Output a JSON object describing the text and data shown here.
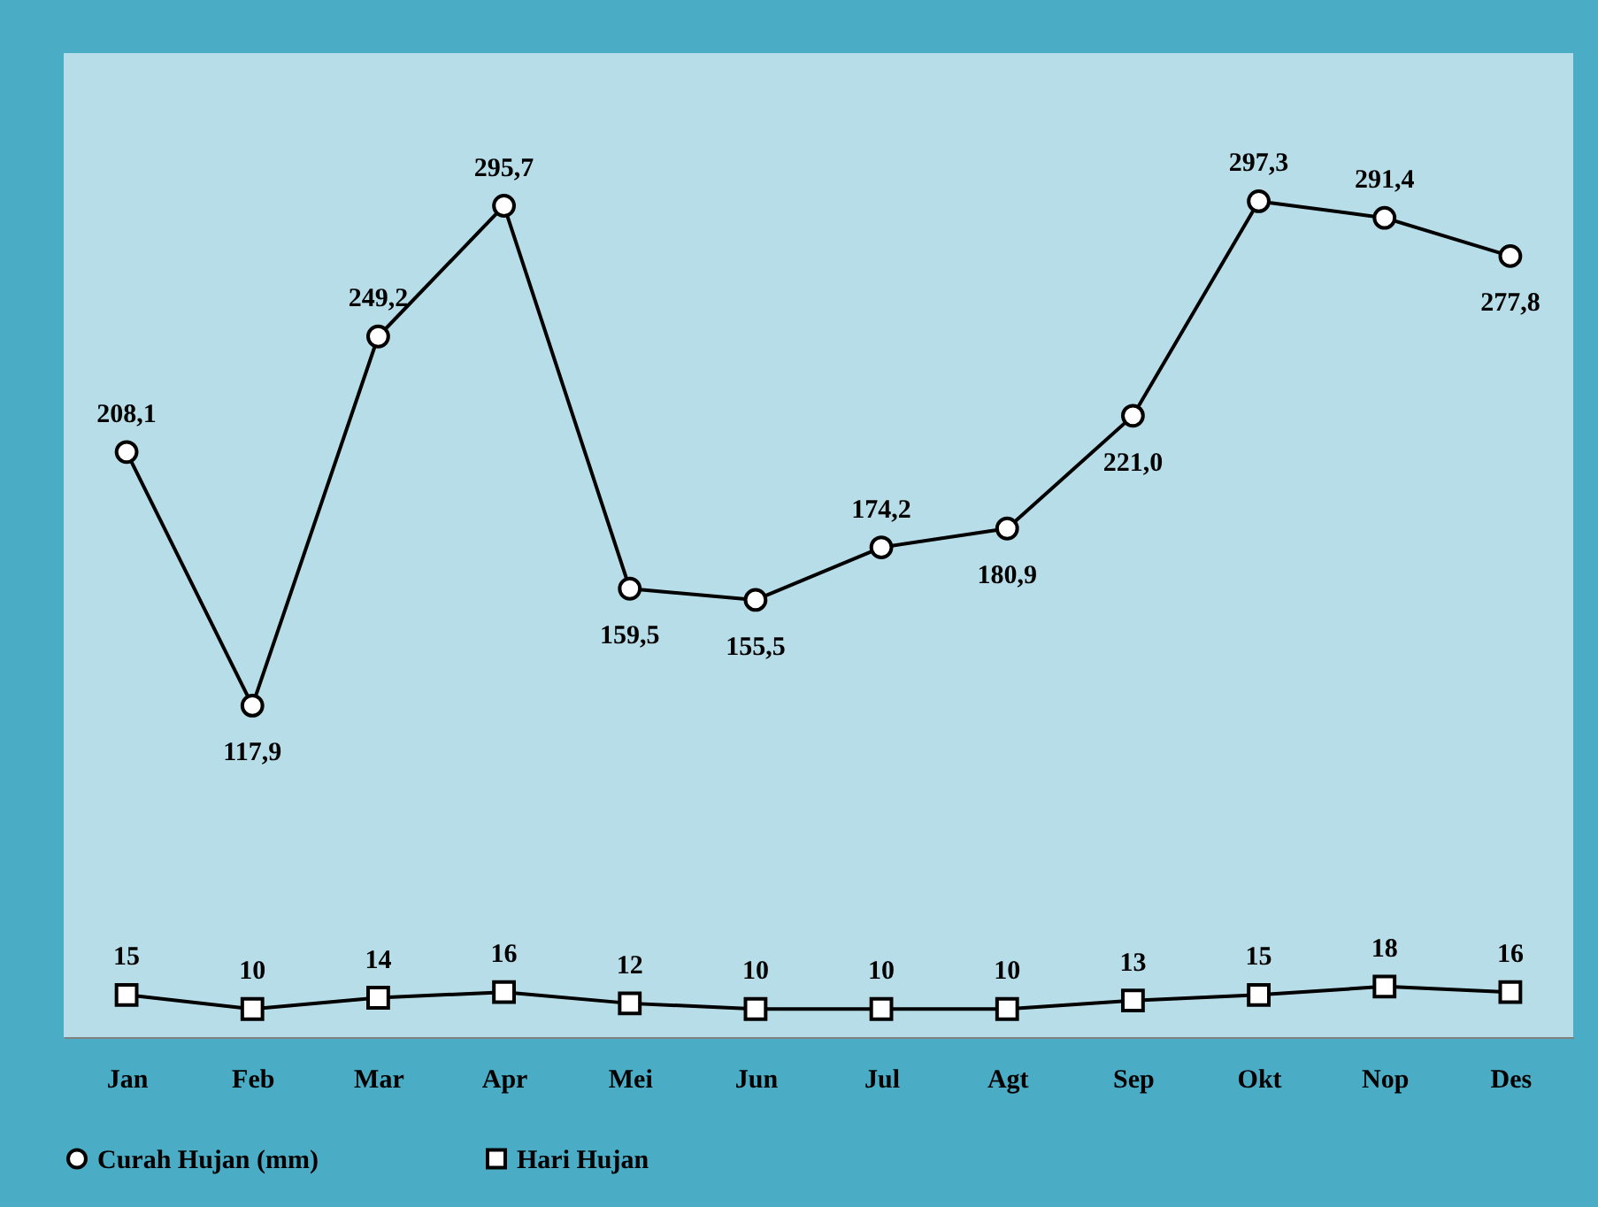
{
  "chart_data": {
    "type": "line",
    "categories": [
      "Jan",
      "Feb",
      "Mar",
      "Apr",
      "Mei",
      "Jun",
      "Jul",
      "Agt",
      "Sep",
      "Okt",
      "Nop",
      "Des"
    ],
    "series": [
      {
        "name": "Curah Hujan (mm)",
        "color": "#000000",
        "marker": "circle",
        "values": [
          208.1,
          117.9,
          249.2,
          295.7,
          159.5,
          155.5,
          174.2,
          180.9,
          221.0,
          297.3,
          291.4,
          277.8
        ],
        "value_labels": [
          "208,1",
          "117,9",
          "249,2",
          "295,7",
          "159,5",
          "155,5",
          "174,2",
          "180,9",
          "221,0",
          "297,3",
          "291,4",
          "277,8"
        ]
      },
      {
        "name": "Hari Hujan",
        "color": "#000000",
        "marker": "square",
        "values": [
          15,
          10,
          14,
          16,
          12,
          10,
          10,
          10,
          13,
          15,
          18,
          16
        ],
        "value_labels": [
          "15",
          "10",
          "14",
          "16",
          "12",
          "10",
          "10",
          "10",
          "13",
          "15",
          "18",
          "16"
        ]
      }
    ],
    "ylim": [
      0,
      350
    ],
    "tick_labels": "x",
    "grid": false,
    "legend": "bottom",
    "line_style": "solid"
  }
}
